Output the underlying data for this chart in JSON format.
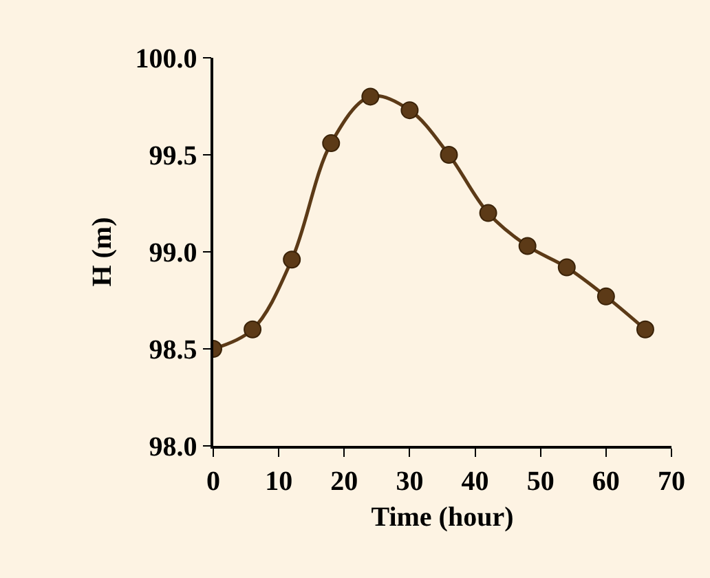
{
  "chart_data": {
    "type": "line",
    "xlabel": "Time (hour)",
    "ylabel": "H (m)",
    "x": [
      0,
      6,
      12,
      18,
      24,
      30,
      36,
      42,
      48,
      54,
      60,
      66
    ],
    "series": [
      {
        "color": "#5c3a17",
        "values": [
          98.5,
          98.6,
          98.96,
          99.56,
          99.8,
          99.73,
          99.5,
          99.2,
          99.03,
          98.92,
          98.77,
          98.6
        ]
      }
    ],
    "xlim": [
      0,
      70
    ],
    "xticks": [
      0,
      10,
      20,
      30,
      40,
      50,
      60,
      70
    ],
    "ylim": [
      98,
      100
    ],
    "yticks": [
      {
        "value": 98,
        "label": "98.0"
      },
      {
        "value": 98.5,
        "label": "98.5"
      },
      {
        "value": 99,
        "label": "99.0"
      },
      {
        "value": 99.5,
        "label": "99.5"
      },
      {
        "value": 100,
        "label": "100.0"
      }
    ],
    "grid": false,
    "legend": false,
    "marker": "circle",
    "line_style": "solid"
  }
}
